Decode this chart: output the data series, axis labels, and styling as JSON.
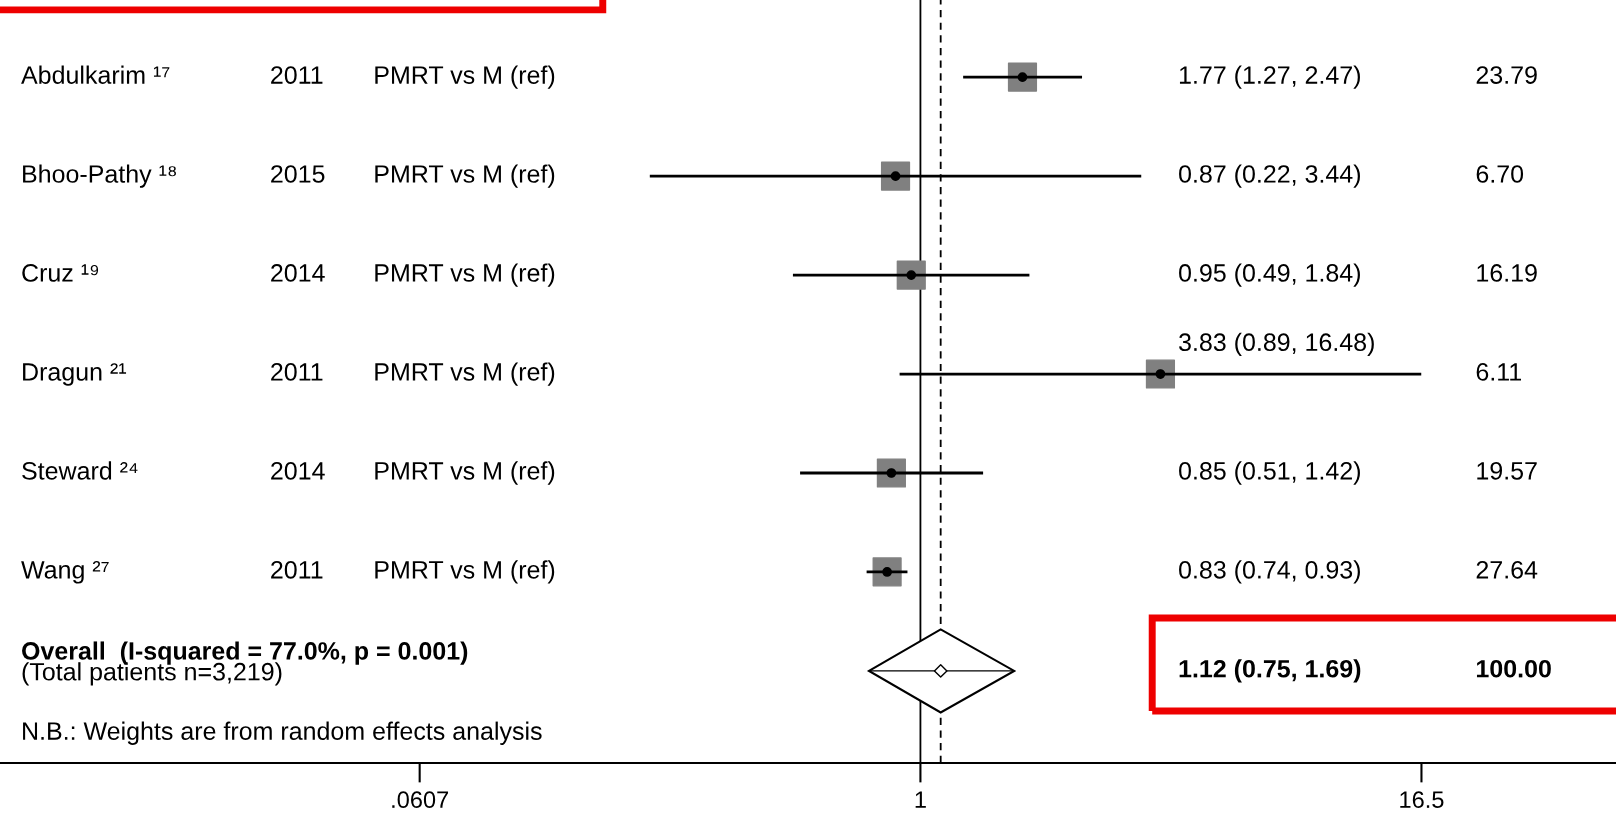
{
  "chart_data": {
    "type": "scatter",
    "orientation": "horizontal",
    "log": "x",
    "categories": [
      "Abdulkarim ¹⁷",
      "Bhoo-Pathy ¹⁸",
      "Cruz ¹⁹",
      "Dragun ²¹",
      "Steward ²⁴",
      "Wang ²⁷",
      "Overall  (I-squared = 77.0%, p = 0.001)"
    ],
    "series": [
      {
        "color": "#808080",
        "marker": "square",
        "values": [
          1.77,
          0.87,
          0.95,
          3.83,
          0.85,
          0.83,
          null
        ],
        "errors": [
          [
            1.27,
            2.47
          ],
          [
            0.22,
            3.44
          ],
          [
            0.49,
            1.84
          ],
          [
            0.89,
            16.48
          ],
          [
            0.51,
            1.42
          ],
          [
            0.74,
            0.93
          ],
          null
        ]
      },
      {
        "color": "#ffffff",
        "marker": "diamond",
        "values": [
          null,
          null,
          null,
          null,
          null,
          null,
          1.12
        ],
        "errors": [
          null,
          null,
          null,
          null,
          null,
          null,
          [
            0.75,
            1.69
          ]
        ]
      }
    ],
    "value_labels": [
      "1.77 (1.27, 2.47)",
      "0.87 (0.22, 3.44)",
      "0.95 (0.49, 1.84)",
      "3.83 (0.89, 16.48)",
      "0.85 (0.51, 1.42)",
      "0.83 (0.74, 0.93)",
      "1.12 (0.75, 1.69)"
    ],
    "annotations": [
      "2011",
      "2015",
      "2014",
      "2011",
      "2014",
      "2011",
      "PMRT vs M (ref)",
      "PMRT vs M (ref)",
      "PMRT vs M (ref)",
      "PMRT vs M (ref)",
      "PMRT vs M (ref)",
      "PMRT vs M (ref)",
      "23.79",
      "6.70",
      "16.19",
      "6.11",
      "19.57",
      "27.64",
      "100.00",
      "(Total patients n=3,219)",
      "N.B.: Weights are from random effects analysis"
    ],
    "ref_lines": [
      {
        "axis": "x",
        "value": 1,
        "line_style": "solid",
        "color": "#000000"
      },
      {
        "axis": "x",
        "value": 1.12,
        "line_style": "dashed",
        "color": "#000000"
      }
    ],
    "xlim": [
      0.0058,
      49
    ],
    "xticks": [
      {
        "value": 0.0607,
        "label": ".0607"
      },
      1,
      16.5
    ],
    "grid": false,
    "legend": false
  }
}
